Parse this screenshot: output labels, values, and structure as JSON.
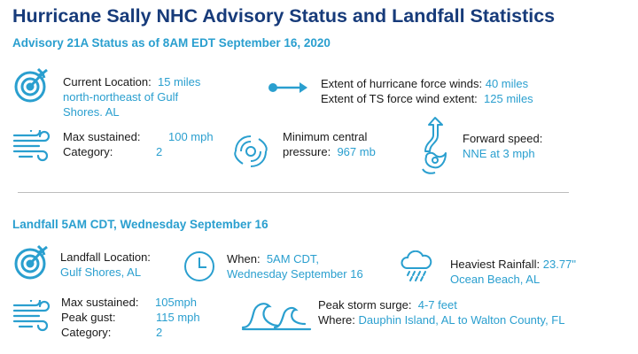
{
  "title": "Hurricane Sally NHC Advisory Status and Landfall Statistics",
  "colors": {
    "title": "#173b7a",
    "accent": "#2a9fcf"
  },
  "advisory": {
    "heading": "Advisory 21A Status as of 8AM EDT September 16, 2020",
    "location": {
      "label": "Current Location:",
      "value_line1": "15 miles",
      "value_line2": "north-northeast of Gulf",
      "value_line3": "Shores. AL",
      "icon": "target-icon"
    },
    "winds": {
      "hurricane_label": "Extent of hurricane force winds:",
      "hurricane_value": "40 miles",
      "ts_label": "Extent of TS force wind extent:",
      "ts_value": "125 miles",
      "icon": "arrow-right-icon"
    },
    "max_sustained": {
      "label": "Max sustained:",
      "value": "100 mph",
      "category_label": "Category:",
      "category_value": "2",
      "icon": "wind-icon"
    },
    "pressure": {
      "label_line1": "Minimum central",
      "label_line2": "pressure:",
      "value": "967 mb",
      "icon": "hurricane-icon"
    },
    "forward": {
      "label": "Forward speed:",
      "value": "NNE at 3 mph",
      "icon": "storm-track-icon"
    }
  },
  "landfall": {
    "heading": "Landfall 5AM CDT, Wednesday September 16",
    "location": {
      "label": "Landfall Location:",
      "value": "Gulf Shores, AL",
      "icon": "target-icon"
    },
    "when": {
      "label": "When:",
      "value_line1": "5AM CDT,",
      "value_line2": "Wednesday September 16",
      "icon": "clock-icon"
    },
    "rainfall": {
      "label": "Heaviest Rainfall:",
      "value_line1": "23.77\"",
      "value_line2": "Ocean Beach, AL",
      "icon": "rain-cloud-icon"
    },
    "max_sustained": {
      "label": "Max sustained:",
      "value": "105mph",
      "gust_label": "Peak gust:",
      "gust_value": "115 mph",
      "category_label": "Category:",
      "category_value": "2",
      "icon": "wind-icon"
    },
    "surge": {
      "label": "Peak storm surge:",
      "value": "4-7 feet",
      "where_label": "Where:",
      "where_value": "Dauphin Island, AL to Walton County, FL",
      "icon": "wave-icon"
    }
  }
}
